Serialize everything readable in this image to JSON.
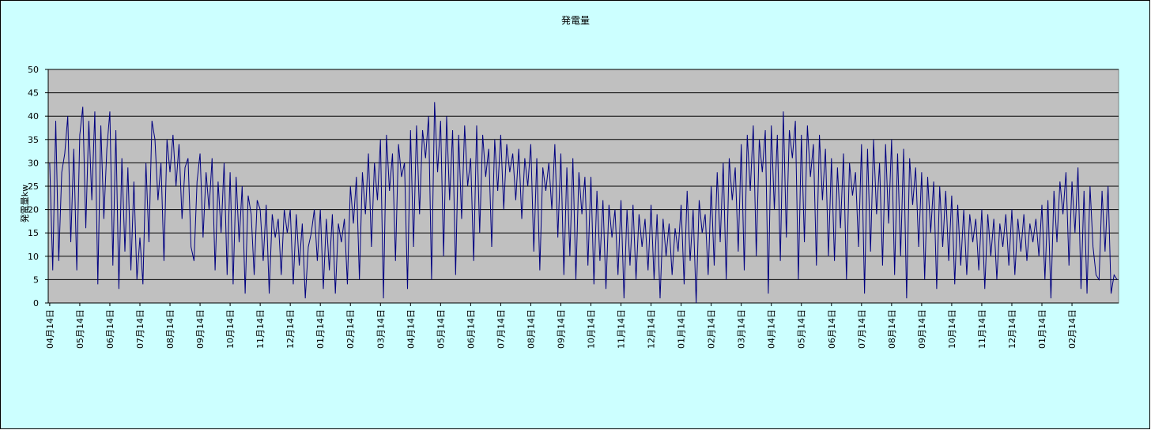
{
  "chart_data": {
    "type": "line",
    "title": "発電量",
    "y_label": "発電量kw",
    "ylim": [
      0,
      50
    ],
    "yticks": [
      0,
      5,
      10,
      15,
      20,
      25,
      30,
      35,
      40,
      45,
      50
    ],
    "grid": true,
    "categories": [
      "04月14日",
      null,
      null,
      null,
      null,
      null,
      null,
      null,
      null,
      null,
      "05月14日",
      null,
      null,
      null,
      null,
      null,
      null,
      null,
      null,
      null,
      "06月14日",
      null,
      null,
      null,
      null,
      null,
      null,
      null,
      null,
      null,
      "07月14日",
      null,
      null,
      null,
      null,
      null,
      null,
      null,
      null,
      null,
      "08月14日",
      null,
      null,
      null,
      null,
      null,
      null,
      null,
      null,
      null,
      "09月14日",
      null,
      null,
      null,
      null,
      null,
      null,
      null,
      null,
      null,
      "10月14日",
      null,
      null,
      null,
      null,
      null,
      null,
      null,
      null,
      null,
      "11月14日",
      null,
      null,
      null,
      null,
      null,
      null,
      null,
      null,
      null,
      "12月14日",
      null,
      null,
      null,
      null,
      null,
      null,
      null,
      null,
      null,
      "01月14日",
      null,
      null,
      null,
      null,
      null,
      null,
      null,
      null,
      null,
      "02月14日",
      null,
      null,
      null,
      null,
      null,
      null,
      null,
      null,
      null,
      "03月14日",
      null,
      null,
      null,
      null,
      null,
      null,
      null,
      null,
      null,
      "04月14日",
      null,
      null,
      null,
      null,
      null,
      null,
      null,
      null,
      null,
      "05月14日",
      null,
      null,
      null,
      null,
      null,
      null,
      null,
      null,
      null,
      "06月14日",
      null,
      null,
      null,
      null,
      null,
      null,
      null,
      null,
      null,
      "07月14日",
      null,
      null,
      null,
      null,
      null,
      null,
      null,
      null,
      null,
      "08月14日",
      null,
      null,
      null,
      null,
      null,
      null,
      null,
      null,
      null,
      "09月14日",
      null,
      null,
      null,
      null,
      null,
      null,
      null,
      null,
      null,
      "10月14日",
      null,
      null,
      null,
      null,
      null,
      null,
      null,
      null,
      null,
      "11月14日",
      null,
      null,
      null,
      null,
      null,
      null,
      null,
      null,
      null,
      "12月14日",
      null,
      null,
      null,
      null,
      null,
      null,
      null,
      null,
      null,
      "01月14日",
      null,
      null,
      null,
      null,
      null,
      null,
      null,
      null,
      null,
      "02月14日",
      null,
      null,
      null,
      null,
      null,
      null,
      null,
      null,
      null,
      "03月14日",
      null,
      null,
      null,
      null,
      null,
      null,
      null,
      null,
      null,
      "04月14日",
      null,
      null,
      null,
      null,
      null,
      null,
      null,
      null,
      null,
      "05月14日",
      null,
      null,
      null,
      null,
      null,
      null,
      null,
      null,
      null,
      "06月14日",
      null,
      null,
      null,
      null,
      null,
      null,
      null,
      null,
      null,
      "07月14日",
      null,
      null,
      null,
      null,
      null,
      null,
      null,
      null,
      null,
      "08月14日",
      null,
      null,
      null,
      null,
      null,
      null,
      null,
      null,
      null,
      "09月14日",
      null,
      null,
      null,
      null,
      null,
      null,
      null,
      null,
      null,
      "10月14日",
      null,
      null,
      null,
      null,
      null,
      null,
      null,
      null,
      null,
      "11月14日",
      null,
      null,
      null,
      null,
      null,
      null,
      null,
      null,
      null,
      "12月14日",
      null,
      null,
      null,
      null,
      null,
      null,
      null,
      null,
      null,
      "01月14日",
      null,
      null,
      null,
      null,
      null,
      null,
      null,
      null,
      null,
      "02月14日",
      null,
      null,
      null,
      null,
      null,
      null,
      null,
      null,
      null,
      null,
      null,
      null,
      null,
      null,
      null
    ],
    "color": "#000080",
    "values": [
      30,
      7,
      39,
      9,
      28,
      32,
      40,
      13,
      33,
      7,
      36,
      42,
      16,
      39,
      22,
      41,
      4,
      38,
      18,
      33,
      41,
      8,
      37,
      3,
      31,
      11,
      29,
      7,
      26,
      5,
      14,
      4,
      30,
      13,
      39,
      35,
      22,
      30,
      9,
      35,
      28,
      36,
      25,
      34,
      18,
      29,
      31,
      12,
      9,
      26,
      32,
      14,
      28,
      20,
      31,
      7,
      26,
      15,
      30,
      6,
      28,
      4,
      27,
      13,
      25,
      2,
      23,
      19,
      6,
      22,
      20,
      9,
      21,
      2,
      19,
      14,
      18,
      6,
      20,
      15,
      20,
      4,
      19,
      8,
      17,
      1,
      12,
      15,
      20,
      9,
      20,
      3,
      18,
      7,
      19,
      2,
      17,
      13,
      18,
      4,
      25,
      17,
      27,
      5,
      28,
      19,
      32,
      12,
      30,
      22,
      35,
      1,
      36,
      24,
      32,
      9,
      34,
      27,
      30,
      3,
      37,
      12,
      38,
      19,
      37,
      31,
      40,
      5,
      43,
      28,
      39,
      10,
      40,
      22,
      37,
      6,
      36,
      18,
      38,
      25,
      31,
      9,
      38,
      15,
      36,
      27,
      33,
      12,
      35,
      24,
      36,
      20,
      34,
      28,
      32,
      22,
      33,
      18,
      31,
      25,
      34,
      11,
      31,
      7,
      29,
      24,
      30,
      20,
      34,
      14,
      32,
      6,
      29,
      10,
      31,
      5,
      28,
      19,
      27,
      8,
      27,
      4,
      24,
      9,
      22,
      3,
      21,
      14,
      20,
      6,
      22,
      1,
      20,
      8,
      21,
      5,
      19,
      12,
      18,
      7,
      21,
      5,
      19,
      1,
      18,
      10,
      17,
      6,
      16,
      11,
      21,
      4,
      24,
      9,
      20,
      0,
      22,
      15,
      19,
      6,
      25,
      8,
      28,
      13,
      30,
      5,
      31,
      22,
      29,
      11,
      34,
      7,
      36,
      24,
      38,
      10,
      35,
      28,
      37,
      2,
      38,
      20,
      36,
      9,
      41,
      14,
      37,
      31,
      39,
      5,
      36,
      13,
      38,
      27,
      34,
      8,
      36,
      22,
      33,
      10,
      31,
      9,
      29,
      16,
      32,
      5,
      30,
      23,
      28,
      12,
      34,
      2,
      33,
      11,
      35,
      19,
      30,
      8,
      34,
      17,
      35,
      6,
      32,
      10,
      33,
      1,
      31,
      21,
      29,
      12,
      28,
      5,
      27,
      15,
      26,
      3,
      25,
      12,
      24,
      9,
      23,
      4,
      21,
      8,
      20,
      6,
      19,
      13,
      18,
      7,
      20,
      3,
      19,
      10,
      18,
      5,
      17,
      12,
      19,
      8,
      20,
      6,
      18,
      11,
      19,
      9,
      17,
      13,
      18,
      10,
      21,
      5,
      22,
      1,
      24,
      13,
      26,
      19,
      28,
      8,
      26,
      15,
      29,
      3,
      24,
      2,
      25,
      12,
      6,
      5,
      24,
      11,
      25,
      2,
      6,
      5
    ]
  }
}
